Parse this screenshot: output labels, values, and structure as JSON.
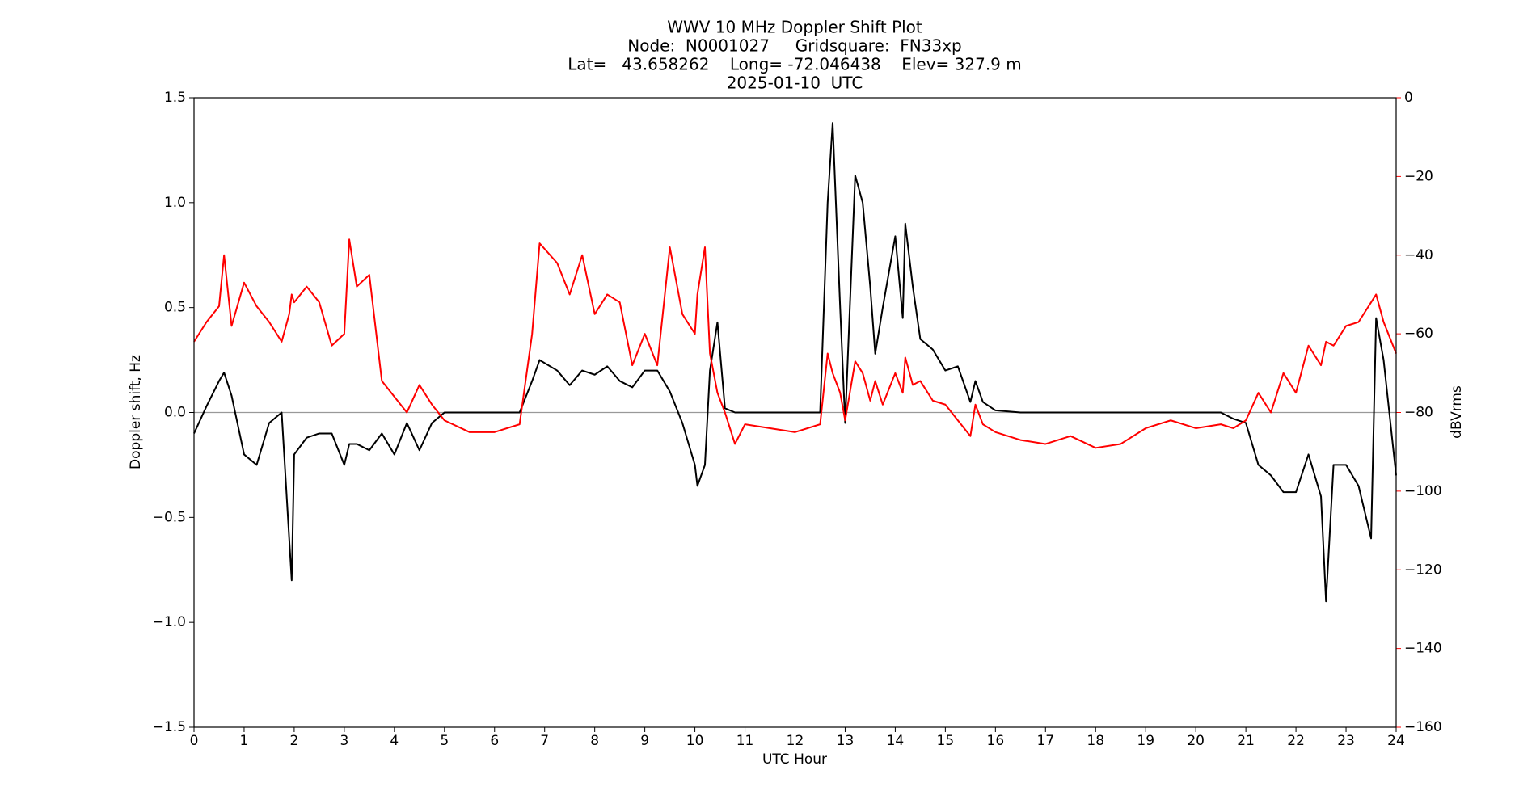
{
  "chart_data": {
    "type": "line",
    "title": [
      "WWV 10 MHz Doppler Shift Plot",
      "Node:  N0001027     Gridsquare:  FN33xp",
      "Lat=   43.658262    Long= -72.046438    Elev= 327.9 m",
      "2025-01-10  UTC"
    ],
    "xlabel": "UTC Hour",
    "ylabel": "Doppler shift, Hz",
    "y2label": "dBVrms",
    "x": [
      0,
      0.25,
      0.5,
      0.6,
      0.75,
      1.0,
      1.25,
      1.5,
      1.75,
      1.9,
      1.95,
      2.0,
      2.25,
      2.5,
      2.75,
      3.0,
      3.1,
      3.25,
      3.5,
      3.75,
      4.0,
      4.25,
      4.5,
      4.75,
      5.0,
      5.5,
      6.0,
      6.5,
      6.75,
      6.9,
      7.25,
      7.5,
      7.75,
      8.0,
      8.25,
      8.5,
      8.75,
      9.0,
      9.25,
      9.5,
      9.75,
      10.0,
      10.05,
      10.2,
      10.3,
      10.45,
      10.6,
      10.8,
      11.0,
      11.5,
      12.0,
      12.5,
      12.65,
      12.75,
      12.9,
      13.0,
      13.2,
      13.35,
      13.5,
      13.6,
      13.75,
      14.0,
      14.15,
      14.2,
      14.35,
      14.5,
      14.75,
      15.0,
      15.25,
      15.5,
      15.6,
      15.75,
      16.0,
      16.5,
      17.0,
      17.5,
      18.0,
      18.5,
      19.0,
      19.5,
      20.0,
      20.5,
      20.75,
      21.0,
      21.25,
      21.5,
      21.75,
      22.0,
      22.25,
      22.5,
      22.6,
      22.75,
      23.0,
      23.25,
      23.5,
      23.6,
      23.75,
      24.0
    ],
    "series": [
      {
        "color": "#000000",
        "axis": "y",
        "values": [
          -0.1,
          0.03,
          0.15,
          0.19,
          0.08,
          -0.2,
          -0.25,
          -0.05,
          0.0,
          -0.6,
          -0.8,
          -0.2,
          -0.12,
          -0.1,
          -0.1,
          -0.25,
          -0.15,
          -0.15,
          -0.18,
          -0.1,
          -0.2,
          -0.05,
          -0.18,
          -0.05,
          0.0,
          0.0,
          0.0,
          0.0,
          0.15,
          0.25,
          0.2,
          0.13,
          0.2,
          0.18,
          0.22,
          0.15,
          0.12,
          0.2,
          0.2,
          0.1,
          -0.05,
          -0.25,
          -0.35,
          -0.25,
          0.2,
          0.43,
          0.02,
          0.0,
          0.0,
          0.0,
          0.0,
          0.0,
          1.0,
          1.38,
          0.5,
          -0.05,
          1.13,
          1.0,
          0.6,
          0.28,
          0.5,
          0.84,
          0.45,
          0.9,
          0.6,
          0.35,
          0.3,
          0.2,
          0.22,
          0.05,
          0.15,
          0.05,
          0.01,
          0.0,
          0.0,
          0.0,
          0.0,
          0.0,
          0.0,
          0.0,
          0.0,
          0.0,
          -0.03,
          -0.05,
          -0.25,
          -0.3,
          -0.38,
          -0.38,
          -0.2,
          -0.4,
          -0.9,
          -0.25,
          -0.25,
          -0.35,
          -0.6,
          0.45,
          0.25,
          -0.3
        ]
      },
      {
        "color": "#ff0000",
        "axis": "y2",
        "values": [
          -62,
          -57,
          -53,
          -40,
          -58,
          -47,
          -53,
          -57,
          -62,
          -55,
          -50,
          -52,
          -48,
          -52,
          -63,
          -60,
          -36,
          -48,
          -45,
          -72,
          -76,
          -80,
          -73,
          -78,
          -82,
          -85,
          -85,
          -83,
          -60,
          -37,
          -42,
          -50,
          -40,
          -55,
          -50,
          -52,
          -68,
          -60,
          -68,
          -38,
          -55,
          -60,
          -50,
          -38,
          -65,
          -75,
          -80,
          -88,
          -83,
          -84,
          -85,
          -83,
          -65,
          -70,
          -75,
          -82,
          -67,
          -70,
          -77,
          -72,
          -78,
          -70,
          -75,
          -66,
          -73,
          -72,
          -77,
          -78,
          -82,
          -86,
          -78,
          -83,
          -85,
          -87,
          -88,
          -86,
          -89,
          -88,
          -84,
          -82,
          -84,
          -83,
          -84,
          -82,
          -75,
          -80,
          -70,
          -75,
          -63,
          -68,
          -62,
          -63,
          -58,
          -57,
          -52,
          -50,
          -57,
          -65
        ]
      }
    ],
    "xlim": [
      0,
      24
    ],
    "xticks": [
      0,
      1,
      2,
      3,
      4,
      5,
      6,
      7,
      8,
      9,
      10,
      11,
      12,
      13,
      14,
      15,
      16,
      17,
      18,
      19,
      20,
      21,
      22,
      23,
      24
    ],
    "ylim": [
      -1.5,
      1.5
    ],
    "yticks": [
      {
        "value": -1.5,
        "label": "−1.5"
      },
      {
        "value": -1.0,
        "label": "−1.0"
      },
      {
        "value": -0.5,
        "label": "−0.5"
      },
      {
        "value": 0,
        "label": "0.0"
      },
      {
        "value": 0.5,
        "label": "0.5"
      },
      {
        "value": 1.0,
        "label": "1.0"
      },
      {
        "value": 1.5,
        "label": "1.5"
      }
    ],
    "y2lim": [
      -160,
      0
    ],
    "y2ticks": [
      {
        "value": -160,
        "label": "−160"
      },
      {
        "value": -140,
        "label": "−140"
      },
      {
        "value": -120,
        "label": "−120"
      },
      {
        "value": -100,
        "label": "−100"
      },
      {
        "value": -80,
        "label": "−80"
      },
      {
        "value": -60,
        "label": "−60"
      },
      {
        "value": -40,
        "label": "−40"
      },
      {
        "value": -20,
        "label": "−20"
      },
      0
    ],
    "y2color": "#ff0000",
    "hline": 0,
    "hline_color": "#999999"
  }
}
